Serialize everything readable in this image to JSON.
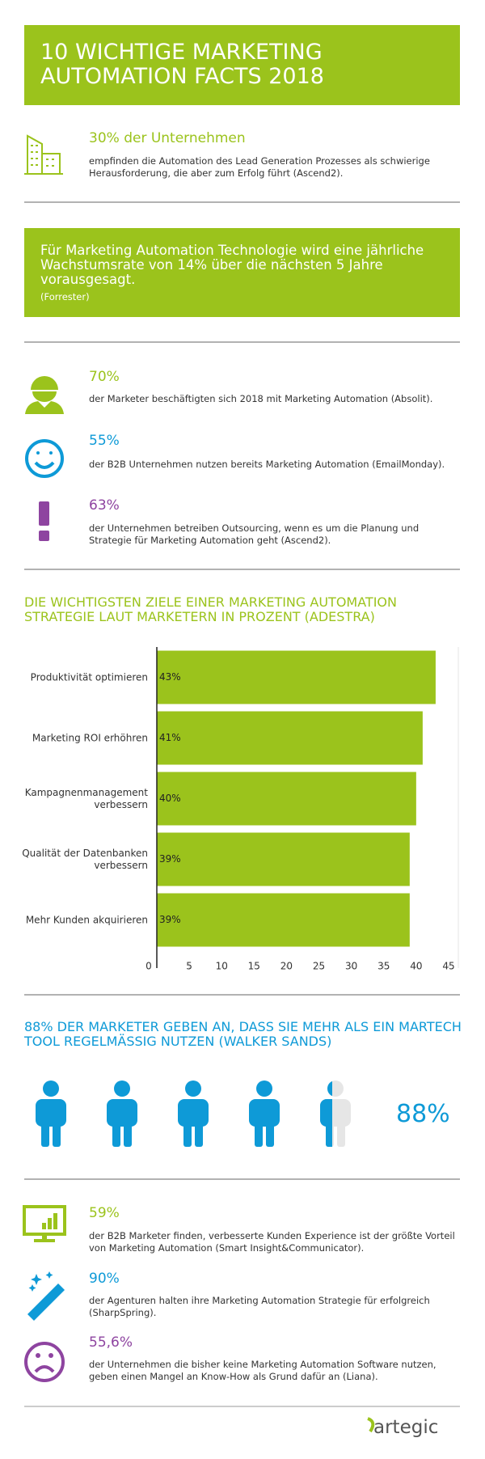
{
  "header": {
    "title_lines": [
      "10 WICHTIGE MARKETING",
      "AUTOMATION FACTS 2018"
    ]
  },
  "fact1": {
    "heading": "30% der Unternehmen",
    "text": "empfinden die Automation des Lead Generation Prozesses als schwierige Herausforderung, die aber zum Erfolg führt (Ascend2)."
  },
  "highlight": {
    "text": "Für Marketing Automation Technologie wird eine jährliche Wachstumsrate von 14% über die nächsten 5 Jahre vorausgesagt.",
    "source": "(Forrester)"
  },
  "stats": [
    {
      "heading": "70%",
      "text": "der Marketer beschäftigten sich 2018 mit Marketing Automation (Absolit)."
    },
    {
      "heading": "55%",
      "text": "der B2B Unternehmen nutzen bereits Marketing Automation (EmailMonday)."
    },
    {
      "heading": "63%",
      "text": "der Unternehmen betreiben Outsourcing, wenn es um die Planung und Strategie für Marketing Automation geht (Ascend2)."
    }
  ],
  "chart_data": {
    "type": "bar",
    "orientation": "horizontal",
    "title": "DIE WICHTIGSTEN ZIELE EINER MARKETING AUTOMATION STRATEGIE LAUT MARKETERN IN PROZENT (ADESTRA)",
    "categories": [
      "Produktivität optimieren",
      "Marketing ROI erhöhren",
      "Kampagnenmanagement verbessern",
      "Qualität der Datenbanken verbessern",
      "Mehr Kunden akquirieren"
    ],
    "values": [
      43,
      41,
      40,
      39,
      39
    ],
    "value_labels": [
      "43%",
      "41%",
      "40%",
      "39%",
      "39%"
    ],
    "color": "#9bc31c",
    "xlim": [
      0,
      46.5
    ],
    "xticks": [
      0,
      5,
      10,
      15,
      20,
      25,
      30,
      35,
      40,
      45
    ]
  },
  "people": {
    "title": "88% DER MARKETER GEBEN AN, DASS SIE MEHR ALS EIN MARTECH TOOL REGELMÄSSIG NUTZEN (WALKER SANDS)",
    "value": 88,
    "value_label": "88%",
    "color": "#0e9ad7"
  },
  "stats2": [
    {
      "heading": "59%",
      "text": "der B2B Marketer finden, verbesserte Kunden Experience ist der größte Vorteil von Marketing Automation (Smart Insight&Communicator)."
    },
    {
      "heading": "90%",
      "text": "der Agenturen halten ihre Marketing Automation Strategie für erfolgreich (SharpSpring)."
    },
    {
      "heading": "55,6%",
      "text": "der Unternehmen die bisher keine Marketing Automation Software nutzen, geben einen Mangel an Know-How als Grund dafür an (Liana)."
    }
  ],
  "footer": {
    "logo": "artegic"
  }
}
